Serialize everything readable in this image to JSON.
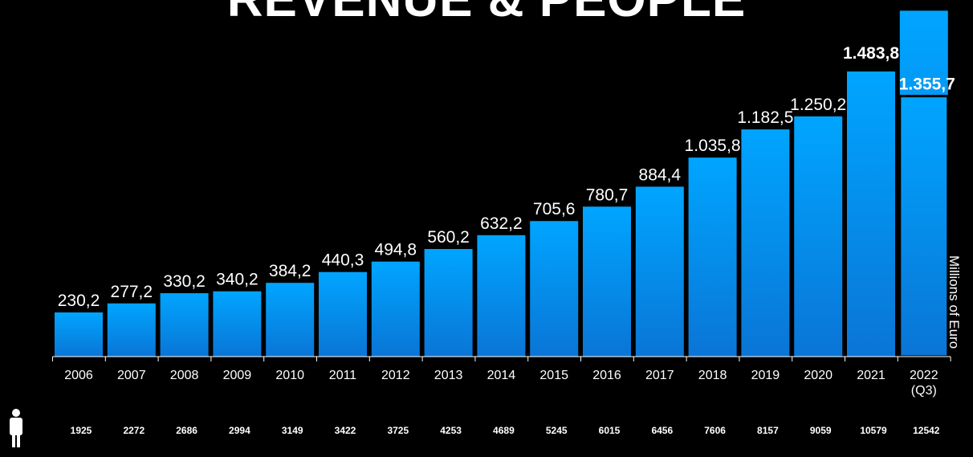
{
  "chart_data": {
    "type": "bar",
    "title": "REVENUE & PEOPLE",
    "ylabel": "Millions of Euro",
    "categories": [
      "2006",
      "2007",
      "2008",
      "2009",
      "2010",
      "2011",
      "2012",
      "2013",
      "2014",
      "2015",
      "2016",
      "2017",
      "2018",
      "2019",
      "2020",
      "2021",
      "2022\n(Q3)"
    ],
    "series": [
      {
        "values": [
          230.2,
          277.2,
          330.2,
          340.2,
          384.2,
          440.3,
          494.8,
          560.2,
          632.2,
          705.6,
          780.7,
          884.4,
          1035.8,
          1182.5,
          1250.2,
          1483.8,
          1355.7
        ],
        "labels": [
          "230,2",
          "277,2",
          "330,2",
          "340,2",
          "384,2",
          "440,3",
          "494,8",
          "560,2",
          "632,2",
          "705,6",
          "780,7",
          "884,4",
          "1.035,8",
          "1.182,5",
          "1.250,2",
          "1.483,8",
          "1.355,7"
        ]
      }
    ],
    "extra_2022_bar_value": 1800,
    "employees": [
      1925,
      2272,
      2686,
      2994,
      3149,
      3422,
      3725,
      4253,
      4689,
      5245,
      6015,
      6456,
      7606,
      8157,
      9059,
      10579,
      12542
    ],
    "ylim": [
      0,
      1800
    ],
    "grid": false,
    "legend": "none",
    "colors": {
      "bar_top": "#00a5ff",
      "bar_bottom": "#0a75d6",
      "background": "#000000"
    },
    "icons": {
      "people": "person-icon"
    }
  }
}
